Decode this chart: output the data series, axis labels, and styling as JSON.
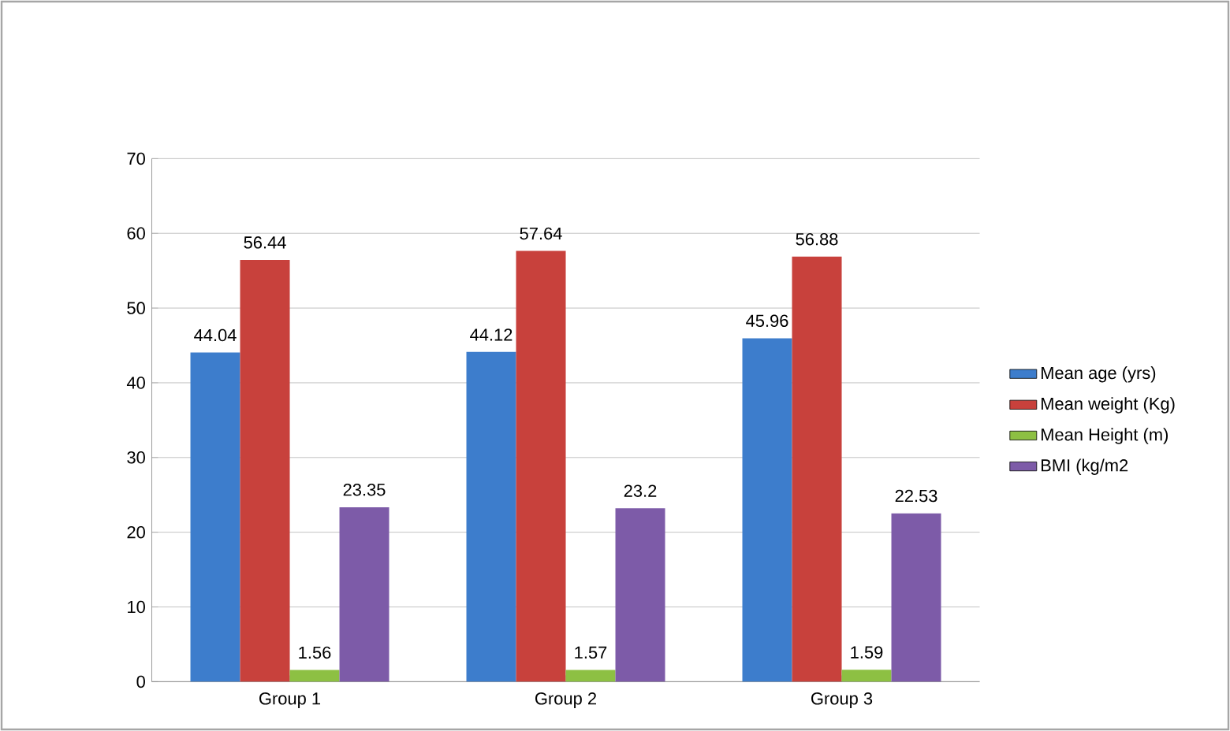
{
  "chart_data": {
    "type": "bar",
    "categories": [
      "Group 1",
      "Group 2",
      "Group 3"
    ],
    "series": [
      {
        "name": "Mean age (yrs)",
        "color": "#3d7dcc",
        "values": [
          44.04,
          44.12,
          45.96
        ]
      },
      {
        "name": "Mean weight (Kg)",
        "color": "#c8413c",
        "values": [
          56.44,
          57.64,
          56.88
        ]
      },
      {
        "name": "Mean Height (m)",
        "color": "#8dc043",
        "values": [
          1.56,
          1.57,
          1.59
        ]
      },
      {
        "name": "BMI (kg/m2",
        "color": "#7d5ba8",
        "values": [
          23.35,
          23.2,
          22.53
        ]
      }
    ],
    "ylim": [
      0,
      70
    ],
    "yticks": [
      0,
      10,
      20,
      30,
      40,
      50,
      60,
      70
    ],
    "grid": "y",
    "legend": "right",
    "data_labels": true
  }
}
